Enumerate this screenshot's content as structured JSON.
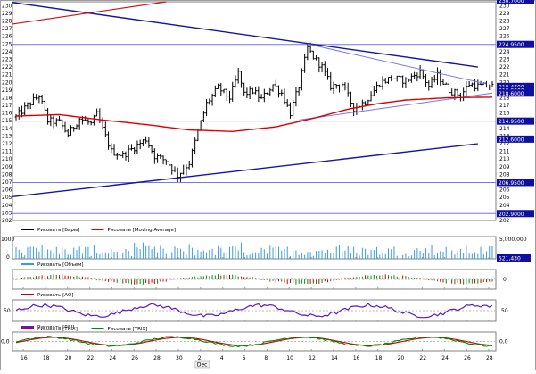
{
  "colors": {
    "price": "#000000",
    "ma": "#dd0000",
    "trend_blue": "#1515a8",
    "trend_red": "#cc1111",
    "hline": "#7777ee",
    "tag_bg": "#1010a0",
    "volume": "#3a9be0",
    "ao_up": "#0a8a0a",
    "ao_down": "#cc0000",
    "rsi": "#5a18c8",
    "trix": "#008800",
    "trix_signal": "#cc0000",
    "panel_border": "#808080",
    "grid": "#c8c8c8"
  },
  "legends": {
    "price": [
      {
        "swatch": "price",
        "label": "Рисовать [Бары]"
      },
      {
        "swatch": "ma",
        "label": "Рисовать [Moving Average]"
      }
    ],
    "volume": [
      {
        "swatch": "volume",
        "label": "Рисовать [Объем]"
      }
    ],
    "ao": [
      {
        "swatch": "ao_down",
        "label": "Рисовать [AO]"
      }
    ],
    "rsi": [
      {
        "swatch": "rsi",
        "label": "Рисовать [RSI]"
      }
    ],
    "trix": [
      {
        "swatch": "trix_signal",
        "label": "Рисовать [TRIX]"
      },
      {
        "swatch": "trix",
        "label": "Рисовать [TRIX]"
      }
    ]
  },
  "axes": {
    "price_ticks": [
      "230",
      "229",
      "228",
      "227",
      "226",
      "225",
      "224",
      "223",
      "222",
      "221",
      "220",
      "219",
      "218",
      "217",
      "216",
      "215",
      "214",
      "213",
      "212",
      "211",
      "210",
      "209",
      "208",
      "207",
      "206",
      "205",
      "204",
      "203",
      "202"
    ],
    "volume_ticks_left": [
      "1000",
      "0"
    ],
    "volume_ticks_right": [
      "5,000,000",
      "0"
    ],
    "ao_ticks": [
      "0"
    ],
    "rsi_ticks_left": [
      "50"
    ],
    "rsi_ticks_right": [
      "50"
    ],
    "trix_ticks_left": [
      "0,0"
    ],
    "trix_ticks_right": [
      "0,0"
    ],
    "x_ticks": [
      "16",
      "18",
      "20",
      "22",
      "24",
      "26",
      "28",
      "30",
      "2",
      "4",
      "6",
      "8",
      "10",
      "12",
      "14",
      "16",
      "18",
      "20",
      "22",
      "24",
      "26",
      "28"
    ],
    "month_label": "Dec"
  },
  "price_tags": [
    {
      "label": "230.7000",
      "value": 230.7
    },
    {
      "label": "224.9500",
      "value": 224.95
    },
    {
      "label": "219.4700",
      "value": 219.47
    },
    {
      "label": "219.0000",
      "value": 219.0
    },
    {
      "label": "218.6000",
      "value": 218.6
    },
    {
      "label": "214.9500",
      "value": 214.95
    },
    {
      "label": "212.6000",
      "value": 212.6
    },
    {
      "label": "206.9500",
      "value": 206.95
    },
    {
      "label": "202.9000",
      "value": 202.9
    }
  ],
  "volume_tag": {
    "label": "521,430"
  },
  "chart_data": {
    "type": "candlestick",
    "price_range": [
      202,
      230.5
    ],
    "horizontal_lines": [
      224.95,
      214.95,
      206.95,
      202.9
    ],
    "moving_average": {
      "start": 215.6,
      "anchors": [
        [
          0,
          215.6
        ],
        [
          15,
          215.8
        ],
        [
          30,
          215.1
        ],
        [
          45,
          214.5
        ],
        [
          60,
          213.8
        ],
        [
          75,
          213.6
        ],
        [
          90,
          214.2
        ],
        [
          105,
          215.5
        ],
        [
          115,
          216.5
        ],
        [
          125,
          217.2
        ],
        [
          135,
          217.7
        ],
        [
          150,
          218.0
        ],
        [
          170,
          218.1
        ],
        [
          185,
          218.5
        ]
      ]
    },
    "candles_close_path": [
      [
        0,
        215.5
      ],
      [
        4,
        217.0
      ],
      [
        8,
        218.3
      ],
      [
        11,
        215.0
      ],
      [
        15,
        214.8
      ],
      [
        18,
        213.2
      ],
      [
        22,
        215.3
      ],
      [
        26,
        214.6
      ],
      [
        28,
        215.8
      ],
      [
        33,
        211.0
      ],
      [
        37,
        210.5
      ],
      [
        42,
        211.8
      ],
      [
        45,
        212.6
      ],
      [
        48,
        210.4
      ],
      [
        52,
        209.8
      ],
      [
        56,
        207.9
      ],
      [
        60,
        209.5
      ],
      [
        63,
        213.6
      ],
      [
        66,
        217.2
      ],
      [
        70,
        219.3
      ],
      [
        74,
        218.0
      ],
      [
        77,
        221.2
      ],
      [
        79,
        218.5
      ],
      [
        82,
        218.9
      ],
      [
        85,
        217.8
      ],
      [
        89,
        219.7
      ],
      [
        92,
        218.6
      ],
      [
        95,
        216.0
      ],
      [
        98,
        219.5
      ],
      [
        101,
        224.5
      ],
      [
        103,
        223.3
      ],
      [
        106,
        222.0
      ],
      [
        109,
        219.5
      ],
      [
        113,
        219.8
      ],
      [
        117,
        216.6
      ],
      [
        121,
        217.5
      ],
      [
        126,
        219.9
      ],
      [
        130,
        220.6
      ],
      [
        135,
        220.2
      ],
      [
        140,
        221.4
      ],
      [
        143,
        219.5
      ],
      [
        146,
        220.9
      ],
      [
        150,
        219.0
      ],
      [
        154,
        218.3
      ],
      [
        157,
        219.8
      ],
      [
        160,
        219.5
      ]
    ],
    "volume": {
      "max": 1000,
      "profile_seed": 7
    },
    "rsi": {
      "level": 50
    },
    "trix": {
      "zero": 0.0
    }
  }
}
